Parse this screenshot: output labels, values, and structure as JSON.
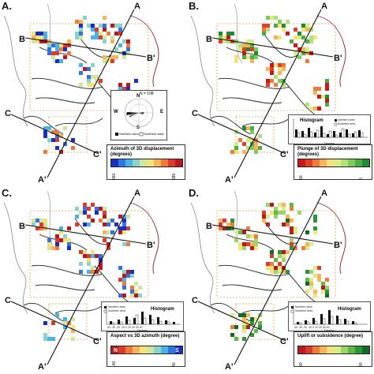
{
  "panels": [
    {
      "label": "A.",
      "sections": {
        "a": "A",
        "a_prime": "A'",
        "b": "B",
        "b_prime": "B'",
        "c": "C",
        "c_prime": "C'"
      },
      "legend_title": "Azimuth of 3D displacement (degrees)",
      "colorbar": [
        "#1a2fbf",
        "#2f74e0",
        "#49b3e6",
        "#8ad3c8",
        "#cfe5a0",
        "#f4e27a",
        "#f7b45a",
        "#f07a3a",
        "#dc3a2c",
        "#b8191e"
      ],
      "colorbar_labels": [
        "260",
        "280"
      ],
      "rose": {
        "n_label": "N = 108",
        "north": "N",
        "south": "S",
        "east": "E",
        "west": "W",
        "legend_north": "Northern area",
        "legend_south": "Southern area"
      }
    },
    {
      "label": "B.",
      "sections": {
        "a": "A",
        "a_prime": "A'",
        "b": "B",
        "b_prime": "B'",
        "c": "C",
        "c_prime": "C'"
      },
      "legend_title": "Plunge of 3D displacement (degrees)",
      "colorbar": [
        "#c81818",
        "#e0402a",
        "#f07a3a",
        "#f7b45a",
        "#f4e27a",
        "#d9ec8a",
        "#b3e07a",
        "#7fcc5e",
        "#4aae44",
        "#1f8a2e"
      ],
      "colorbar_labels": [
        "50",
        "0"
      ],
      "histogram": {
        "title": "Histogram",
        "legend_north": "Northern area",
        "legend_south": "Southern area",
        "xlabel": "Degrees"
      }
    },
    {
      "label": "C.",
      "sections": {
        "a": "A",
        "a_prime": "A'",
        "b": "B",
        "b_prime": "B'",
        "c": "C",
        "c_prime": "C'"
      },
      "legend_title": "Aspect vs 3D azimuth (degree)",
      "colorbar": [
        "#b8191e",
        "#dc3a2c",
        "#f07a3a",
        "#f7b45a",
        "#f4e27a",
        "#cfe5a0",
        "#8ad3c8",
        "#49b3e6",
        "#2f74e0",
        "#1a2fbf"
      ],
      "colorbar_labels": [
        "-40",
        "40"
      ],
      "colorbar_ends": [
        "N",
        "S"
      ],
      "histogram": {
        "title": "Histogram",
        "legend_north": "Northern area",
        "legend_south": "Southern area",
        "xlabel": "Degrees",
        "ticks": "-40  -30  -20  -10   0   10   20   30   40"
      }
    },
    {
      "label": "D.",
      "sections": {
        "a": "A",
        "a_prime": "A'",
        "b": "B",
        "b_prime": "B'",
        "c": "C",
        "c_prime": "C'"
      },
      "legend_title": "Uplift or subsidence (degree)",
      "colorbar": [
        "#b8191e",
        "#dc3a2c",
        "#f07a3a",
        "#f7b45a",
        "#f4e27a",
        "#d9ec8a",
        "#9ed36a",
        "#5fb84a",
        "#2e9438",
        "#146b24"
      ],
      "colorbar_labels": [
        "20",
        "40"
      ],
      "histogram": {
        "title": "Histogram",
        "legend_north": "Northern area",
        "legend_south": "Southern area",
        "xlabel": "Degrees",
        "ticks": "-40  -30  -20  -10   0   10   20   30   40"
      }
    }
  ],
  "palette": {
    "fault": "#222222",
    "boundary": "#f0a040",
    "coast": "#8a1a2a",
    "section_line": "#111111"
  }
}
